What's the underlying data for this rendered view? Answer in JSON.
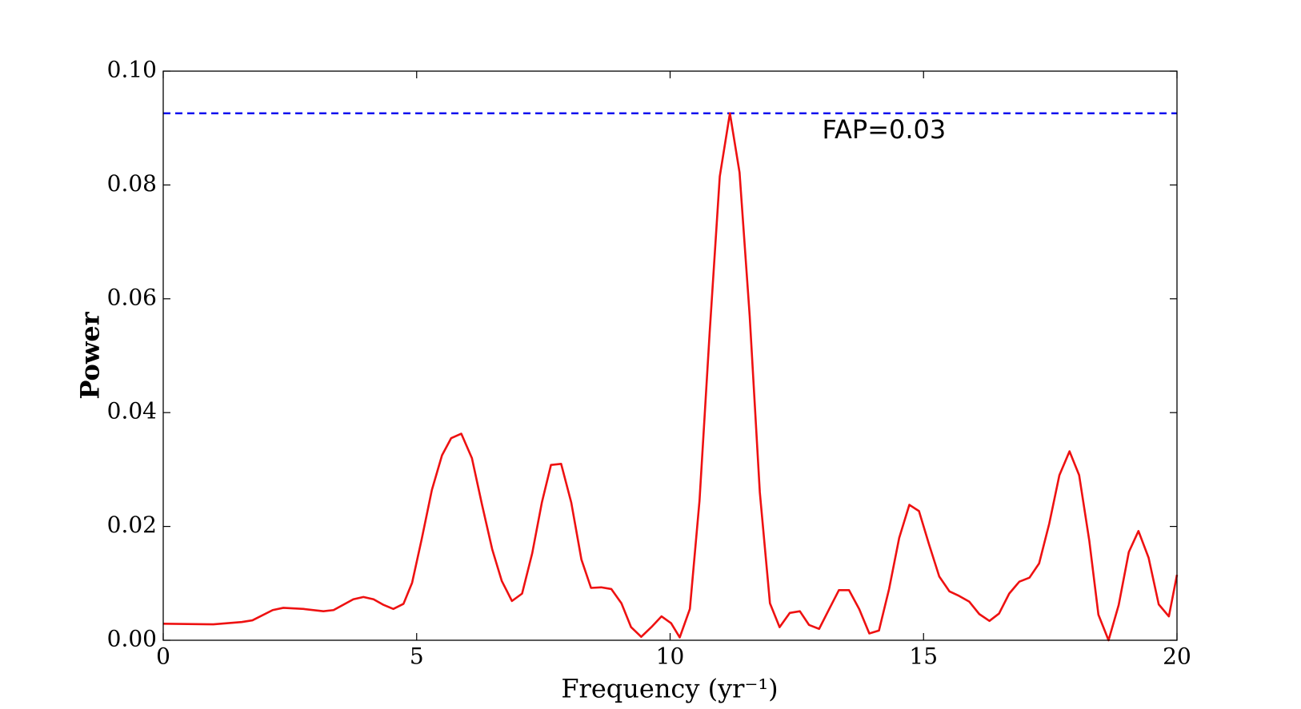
{
  "chart_data": {
    "type": "line",
    "xlabel": "Frequency (yr⁻¹)",
    "ylabel": "Power",
    "x": [
      0,
      0.99,
      1.55,
      1.76,
      2.16,
      2.37,
      2.77,
      3.16,
      3.36,
      3.75,
      3.95,
      4.15,
      4.35,
      4.54,
      4.74,
      4.91,
      5.1,
      5.3,
      5.5,
      5.68,
      5.88,
      6.09,
      6.29,
      6.49,
      6.68,
      6.88,
      7.08,
      7.28,
      7.47,
      7.65,
      7.85,
      8.05,
      8.25,
      8.44,
      8.64,
      8.84,
      9.04,
      9.23,
      9.43,
      9.63,
      9.83,
      10.02,
      10.19,
      10.39,
      10.58,
      10.78,
      10.98,
      11.18,
      11.37,
      11.57,
      11.77,
      11.97,
      12.16,
      12.36,
      12.56,
      12.74,
      12.94,
      13.14,
      13.33,
      13.53,
      13.73,
      13.93,
      14.12,
      14.32,
      14.52,
      14.72,
      14.91,
      15.11,
      15.31,
      15.51,
      15.7,
      15.9,
      16.1,
      16.3,
      16.49,
      16.69,
      16.89,
      17.09,
      17.28,
      17.48,
      17.68,
      17.88,
      18.07,
      18.27,
      18.45,
      18.65,
      18.85,
      19.05,
      19.24,
      19.44,
      19.64,
      19.84,
      20
    ],
    "series": [
      {
        "name": "Power",
        "color": "#ee1111",
        "values": [
          0.0029,
          0.0028,
          0.0032,
          0.0035,
          0.0053,
          0.0057,
          0.0055,
          0.0051,
          0.0053,
          0.0072,
          0.0076,
          0.0072,
          0.0062,
          0.0055,
          0.0064,
          0.0101,
          0.0178,
          0.0264,
          0.0325,
          0.0355,
          0.0363,
          0.032,
          0.0238,
          0.016,
          0.0104,
          0.0069,
          0.0082,
          0.0153,
          0.0242,
          0.0308,
          0.031,
          0.0242,
          0.0142,
          0.0092,
          0.0093,
          0.009,
          0.0065,
          0.0023,
          0.0006,
          0.0023,
          0.0042,
          0.003,
          0.0005,
          0.0055,
          0.0245,
          0.054,
          0.0815,
          0.0926,
          0.0822,
          0.057,
          0.026,
          0.0065,
          0.0023,
          0.0048,
          0.0051,
          0.0027,
          0.002,
          0.0055,
          0.0088,
          0.0088,
          0.0055,
          0.0012,
          0.0017,
          0.009,
          0.018,
          0.0238,
          0.0227,
          0.0168,
          0.0112,
          0.0086,
          0.0078,
          0.0068,
          0.0046,
          0.0034,
          0.0047,
          0.0082,
          0.0103,
          0.011,
          0.0135,
          0.0205,
          0.029,
          0.0332,
          0.029,
          0.0175,
          0.0045,
          0.0,
          0.0062,
          0.0155,
          0.0192,
          0.0145,
          0.0063,
          0.0042,
          0.0115
        ]
      }
    ],
    "fap_line": {
      "value": 0.0926,
      "color": "#1111ee"
    },
    "annotation": {
      "text": "FAP=0.03",
      "x": 13.0,
      "y": 0.0895
    },
    "xlim": [
      0,
      20
    ],
    "xticks": [
      0,
      5,
      10,
      15,
      20
    ],
    "ylim": [
      0,
      0.1
    ],
    "yticks": [
      {
        "value": 0,
        "label": "0.00"
      },
      0.02,
      0.04,
      0.06,
      0.08,
      {
        "value": 0.1,
        "label": "0.10"
      }
    ]
  }
}
